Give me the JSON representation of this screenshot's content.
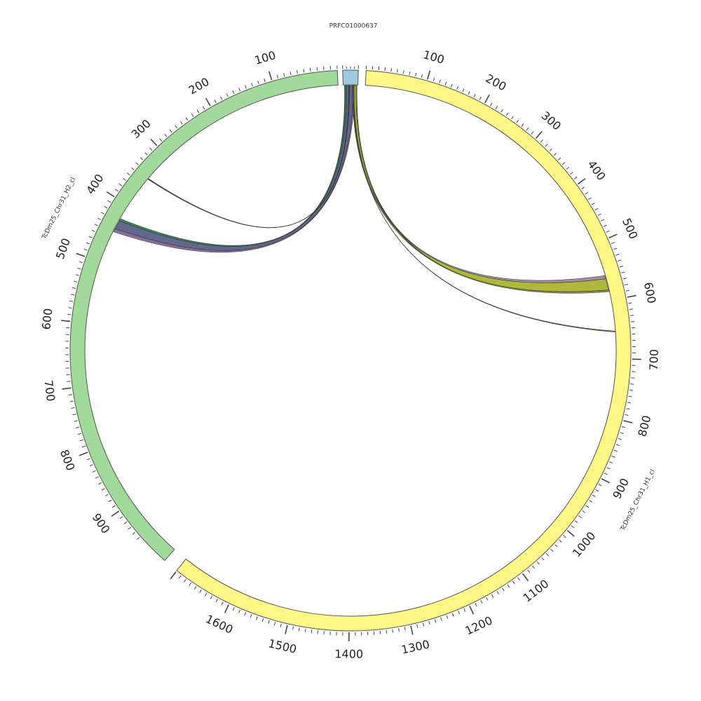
{
  "diagram": {
    "type": "circos",
    "segments": [
      {
        "name": "PRFC01000637",
        "color": "#9ecae1",
        "start": 0,
        "end": 100,
        "labels": []
      },
      {
        "name": "TcDm25_Chr31_H1_cl",
        "color": "#fff685",
        "start": 0,
        "end": 1700,
        "labels": [
          "100",
          "200",
          "300",
          "400",
          "500",
          "600",
          "700",
          "800",
          "900",
          "1000",
          "1100",
          "1200",
          "1300",
          "1400",
          "1500",
          "1600"
        ]
      },
      {
        "name": "TcDm25_Chr31_H2_cl",
        "color": "#a1d99b",
        "start": 0,
        "end": 950,
        "labels": [
          "100",
          "200",
          "300",
          "400",
          "500",
          "600",
          "700",
          "800",
          "900"
        ]
      }
    ],
    "links": [
      {
        "from": "PRFC01000637",
        "to": "TcDm25_Chr31_H2_cl",
        "color": "#5b5f86"
      },
      {
        "from": "PRFC01000637",
        "to": "TcDm25_Chr31_H2_cl",
        "color": "#2e7d4f"
      },
      {
        "from": "PRFC01000637",
        "to": "TcDm25_Chr31_H2_cl",
        "color": "#8a6a9a"
      },
      {
        "from": "PRFC01000637",
        "to": "TcDm25_Chr31_H2_cl",
        "color": "#34495e"
      },
      {
        "from": "PRFC01000637",
        "to": "TcDm25_Chr31_H1_cl",
        "color": "#aab530"
      },
      {
        "from": "PRFC01000637",
        "to": "TcDm25_Chr31_H1_cl",
        "color": "#9c8aa0"
      },
      {
        "from": "PRFC01000637",
        "to": "TcDm25_Chr31_H1_cl",
        "color": "#7f8a3a"
      },
      {
        "from": "PRFC01000637",
        "to": "TcDm25_Chr31_H1_cl",
        "color": "#6b7a2a"
      }
    ]
  }
}
